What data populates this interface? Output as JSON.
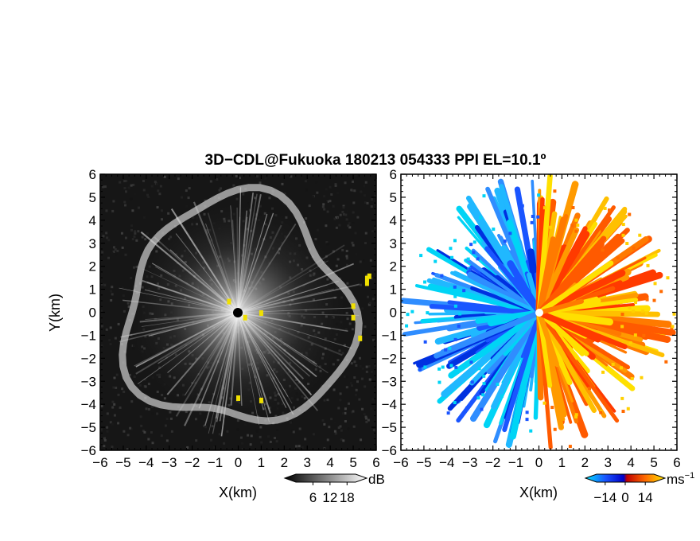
{
  "title": "3D−CDL@Fukuoka 180213 054333 PPI EL=10.1º",
  "chart_data": [
    {
      "type": "heatmap",
      "name": "reflectivity-panel",
      "xlabel": "X(km)",
      "ylabel": "Y(km)",
      "xlim": [
        -6,
        6
      ],
      "ylim": [
        -6,
        6
      ],
      "x_ticks": [
        "−6",
        "−5",
        "−4",
        "−3",
        "−2",
        "−1",
        "0",
        "1",
        "2",
        "3",
        "4",
        "5",
        "6"
      ],
      "y_ticks": [
        "6",
        "5",
        "4",
        "3",
        "2",
        "1",
        "0",
        "−1",
        "−2",
        "−3",
        "−4",
        "−5",
        "−6"
      ],
      "colorbar": {
        "unit": "dB",
        "tick_labels": [
          "6",
          "12",
          "18"
        ],
        "tick_values": [
          6,
          12,
          18
        ],
        "range": [
          0,
          21
        ]
      }
    },
    {
      "type": "heatmap",
      "name": "doppler-velocity-panel",
      "xlabel": "X(km)",
      "ylabel": "",
      "xlim": [
        -6,
        6
      ],
      "ylim": [
        -6,
        6
      ],
      "x_ticks": [
        "−6",
        "−5",
        "−4",
        "−3",
        "−2",
        "−1",
        "0",
        "1",
        "2",
        "3",
        "4",
        "5",
        "6"
      ],
      "y_ticks": [
        "6",
        "5",
        "4",
        "3",
        "2",
        "1",
        "0",
        "−1",
        "−2",
        "−3",
        "−4",
        "−5",
        "−6"
      ],
      "colorbar": {
        "unit": "ms",
        "unit_exponent": "−1",
        "tick_labels": [
          "−14",
          "0",
          "14"
        ],
        "tick_values": [
          -14,
          0,
          14
        ],
        "range": [
          -20,
          20
        ]
      }
    }
  ]
}
